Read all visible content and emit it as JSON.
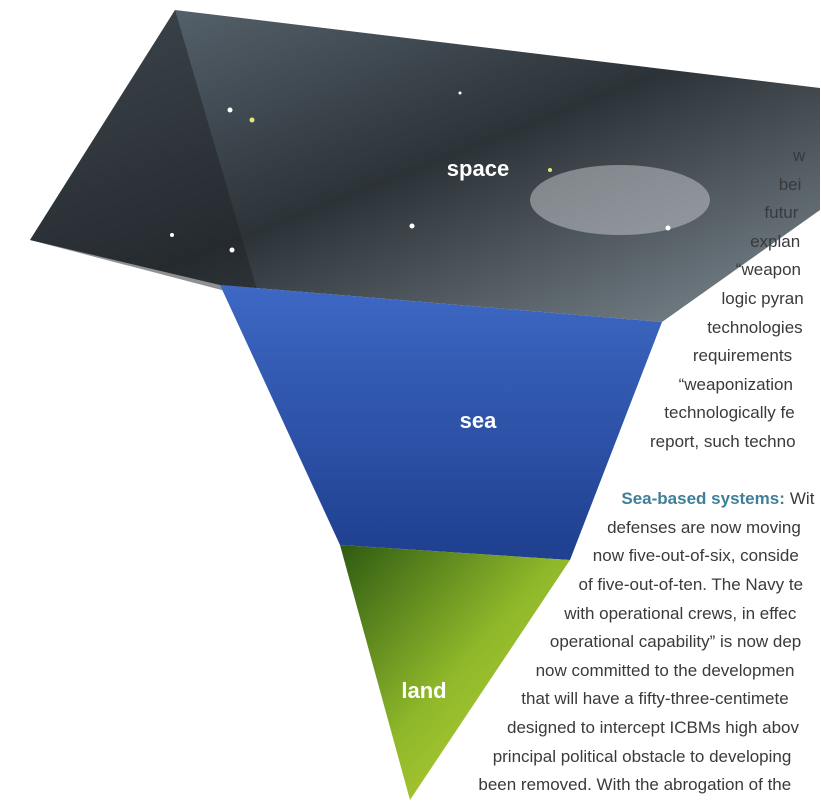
{
  "figure": {
    "labels": [
      "space",
      "sea",
      "land"
    ]
  },
  "paragraphs": [
    {
      "lines": [
        "w",
        "bei",
        "futur",
        "explan",
        "“weapon",
        "logic pyran",
        "technologies",
        "requirements",
        "“weaponization",
        "technologically fe",
        "report, such techno"
      ]
    },
    {
      "heading": "Sea-based systems:",
      "lines": [
        "Wit",
        "defenses are now moving",
        "now five-out-of-six, conside",
        "of five-out-of-ten. The Navy te",
        "with operational crews, in effec",
        "operational capability” is now dep",
        "now committed to the developmen",
        "that will have a fifty-three-centimete",
        "designed to intercept ICBMs high abov",
        "principal political obstacle to developing",
        "been removed. With the abrogation of the"
      ]
    }
  ]
}
